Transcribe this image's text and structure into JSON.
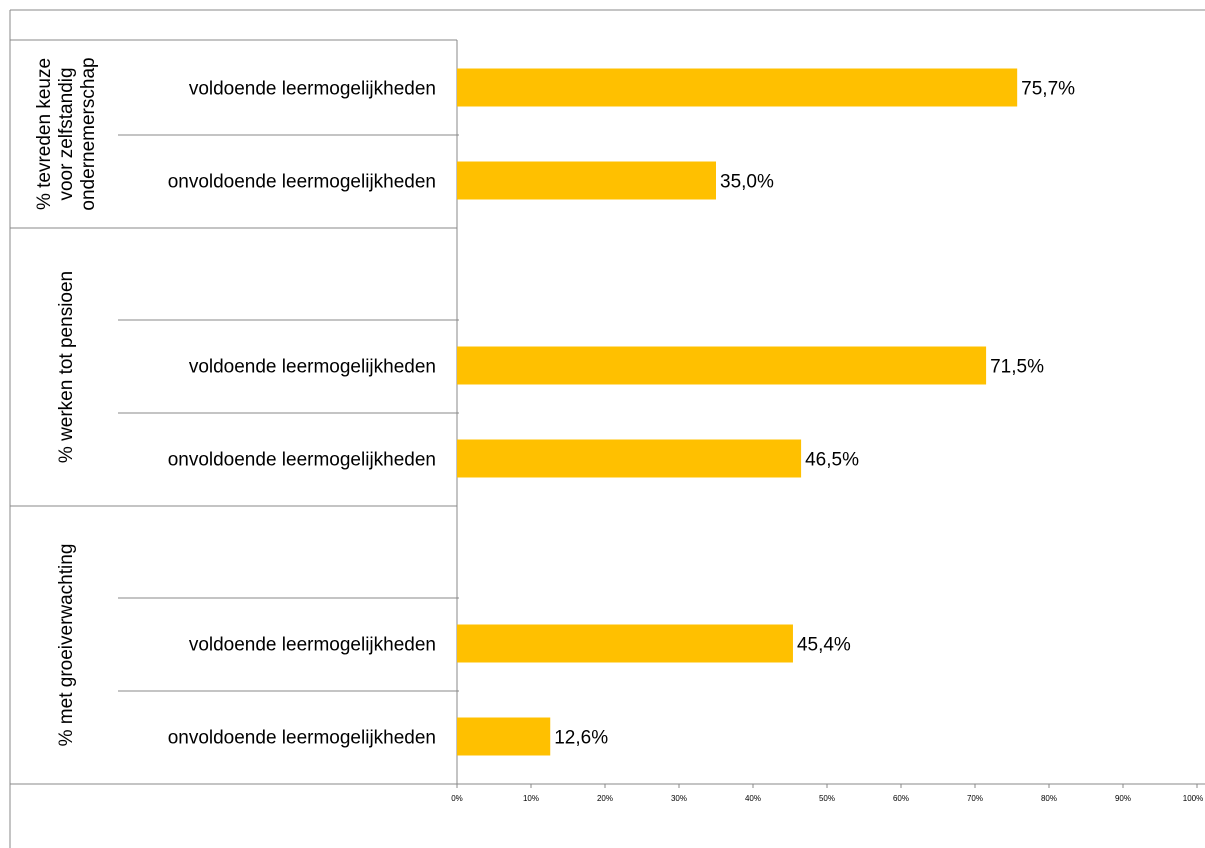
{
  "chart_data": {
    "type": "bar",
    "orientation": "horizontal",
    "groups": [
      {
        "label": "% tevreden keuze voor zelfstandig ondernemerschap",
        "label_lines": [
          "% tevreden keuze",
          "voor zelfstandig",
          "ondernemerschap"
        ],
        "categories": [
          "voldoende leermogelijkheden",
          "onvoldoende leermogelijkheden"
        ],
        "values": [
          75.7,
          35.0
        ],
        "data_labels": [
          "75,7%",
          "35,0%"
        ]
      },
      {
        "label": "% werken tot pensioen",
        "label_lines": [
          "% werken tot pensioen"
        ],
        "categories": [
          "voldoende leermogelijkheden",
          "onvoldoende leermogelijkheden"
        ],
        "values": [
          71.5,
          46.5
        ],
        "data_labels": [
          "71,5%",
          "46,5%"
        ]
      },
      {
        "label": "% met groeiverwachting",
        "label_lines": [
          "% met groeiverwachting"
        ],
        "categories": [
          "voldoende leermogelijkheden",
          "onvoldoende leermogelijkheden"
        ],
        "values": [
          45.4,
          12.6
        ],
        "data_labels": [
          "45,4%",
          "12,6%"
        ]
      }
    ],
    "xlim": [
      0,
      100
    ],
    "x_ticks": [
      "0%",
      "10%",
      "20%",
      "30%",
      "40%",
      "50%",
      "60%",
      "70%",
      "80%",
      "90%",
      "100%"
    ],
    "bar_color": "#FFC000",
    "grid": false,
    "legend": "none"
  }
}
